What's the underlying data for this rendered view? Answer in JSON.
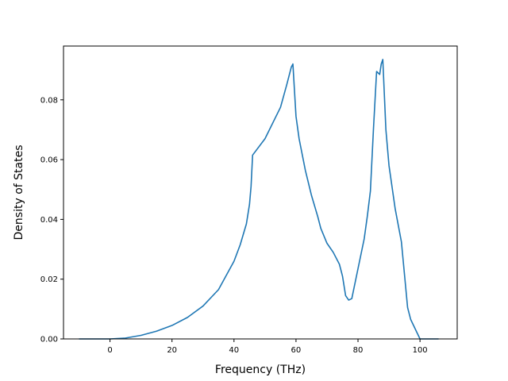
{
  "chart_data": {
    "type": "line",
    "title": "",
    "xlabel": "Frequency (THz)",
    "ylabel": "Density of States",
    "xlim": [
      -15,
      112
    ],
    "ylim": [
      0,
      0.098
    ],
    "grid": false,
    "color": "#1f77b4",
    "x_ticks": [
      0,
      20,
      40,
      60,
      80,
      100
    ],
    "y_ticks": [
      0.0,
      0.02,
      0.04,
      0.06,
      0.08
    ],
    "y_tick_labels": [
      "0.00",
      "0.02",
      "0.04",
      "0.06",
      "0.08"
    ],
    "series": [
      {
        "x": [
          -10,
          0,
          5,
          10,
          15,
          20,
          25,
          30,
          35,
          40,
          42,
          44,
          45,
          45.5,
          46,
          50,
          55,
          57,
          58.5,
          59,
          60,
          61,
          63,
          65,
          67,
          68,
          70,
          72,
          74,
          75,
          76,
          77,
          78,
          80,
          82,
          83,
          84,
          84.5,
          85,
          86,
          87,
          87.5,
          88,
          89,
          90,
          92,
          94,
          95,
          96,
          97,
          100,
          106
        ],
        "y": [
          0,
          0,
          0.0003,
          0.0012,
          0.0026,
          0.0045,
          0.0072,
          0.011,
          0.0165,
          0.026,
          0.0315,
          0.0385,
          0.045,
          0.051,
          0.0615,
          0.067,
          0.0775,
          0.085,
          0.091,
          0.092,
          0.0745,
          0.067,
          0.0565,
          0.048,
          0.041,
          0.037,
          0.032,
          0.029,
          0.025,
          0.021,
          0.0145,
          0.013,
          0.0135,
          0.0235,
          0.0335,
          0.041,
          0.0495,
          0.06,
          0.0705,
          0.0895,
          0.0885,
          0.092,
          0.0935,
          0.07,
          0.058,
          0.0435,
          0.0325,
          0.0215,
          0.0105,
          0.0065,
          0,
          0
        ]
      }
    ]
  }
}
